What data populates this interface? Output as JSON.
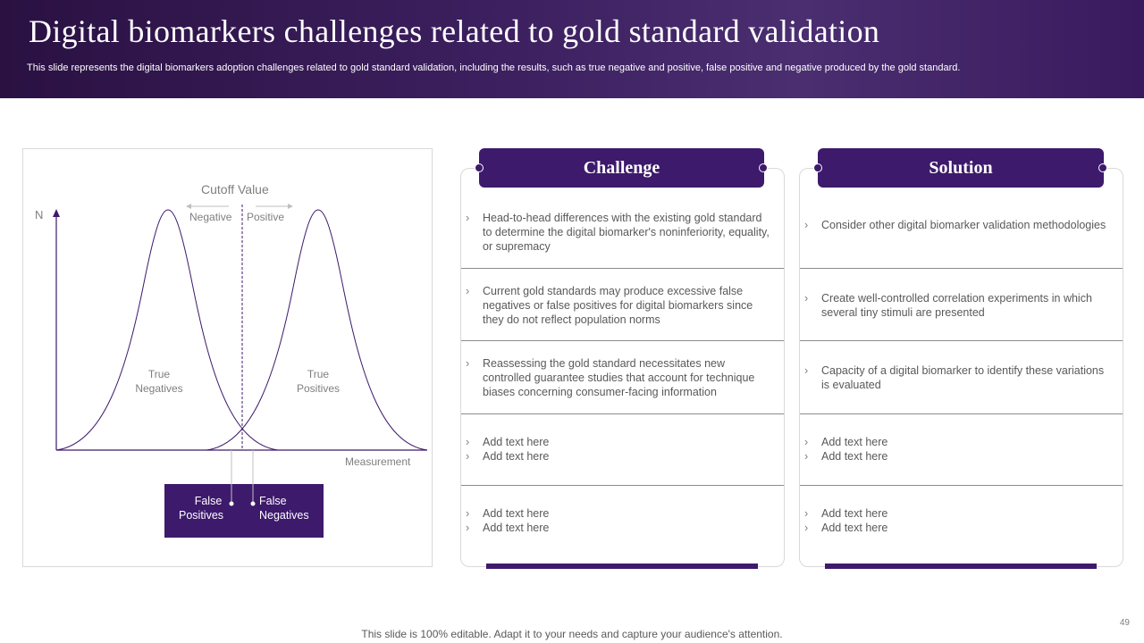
{
  "header": {
    "title": "Digital biomarkers challenges related to gold standard validation",
    "subtitle": "This slide represents the digital biomarkers adoption challenges related to gold standard validation, including the results, such as true negative and positive, false positive and negative produced by the gold standard."
  },
  "diagram": {
    "cutoff_label": "Cutoff Value",
    "negative_label": "Negative",
    "positive_label": "Positive",
    "y_axis_label": "N",
    "x_axis_label": "Measurement",
    "true_negatives_line1": "True",
    "true_negatives_line2": "Negatives",
    "true_positives_line1": "True",
    "true_positives_line2": "Positives",
    "false_positives_line1": "False",
    "false_positives_line2": "Positives",
    "false_negatives_line1": "False",
    "false_negatives_line2": "Negatives"
  },
  "challenge": {
    "heading": "Challenge",
    "rows": [
      [
        "Head-to-head  differences  with the existing gold standard to determine the digital biomarker's noninferiority,  equality, or supremacy"
      ],
      [
        "Current  gold standards may produce excessive false negatives  or false positives  for digital biomarkers  since they do not reflect  population norms"
      ],
      [
        "Reassessing  the gold standard necessitates new controlled  guarantee  studies  that account for technique biases concerning  consumer-facing  information"
      ],
      [
        "Add text here",
        "Add text here"
      ],
      [
        "Add text here",
        "Add text here"
      ]
    ]
  },
  "solution": {
    "heading": "Solution",
    "rows": [
      [
        "Consider  other digital biomarker validation methodologies"
      ],
      [
        "Create well-controlled  correlation  experiments  in which several tiny stimuli are presented"
      ],
      [
        "Capacity  of a digital biomarker  to identify these variations is evaluated"
      ],
      [
        "Add text here",
        "Add text here"
      ],
      [
        "Add text here",
        "Add text here"
      ]
    ]
  },
  "footer": {
    "note": "This slide is 100% editable. Adapt it to your needs and capture your audience's attention.",
    "page_number": "49"
  },
  "colors": {
    "accent": "#3d1a6b",
    "header_gradient_start": "#2a1142",
    "header_gradient_end": "#4a2e70",
    "text": "#595959"
  }
}
